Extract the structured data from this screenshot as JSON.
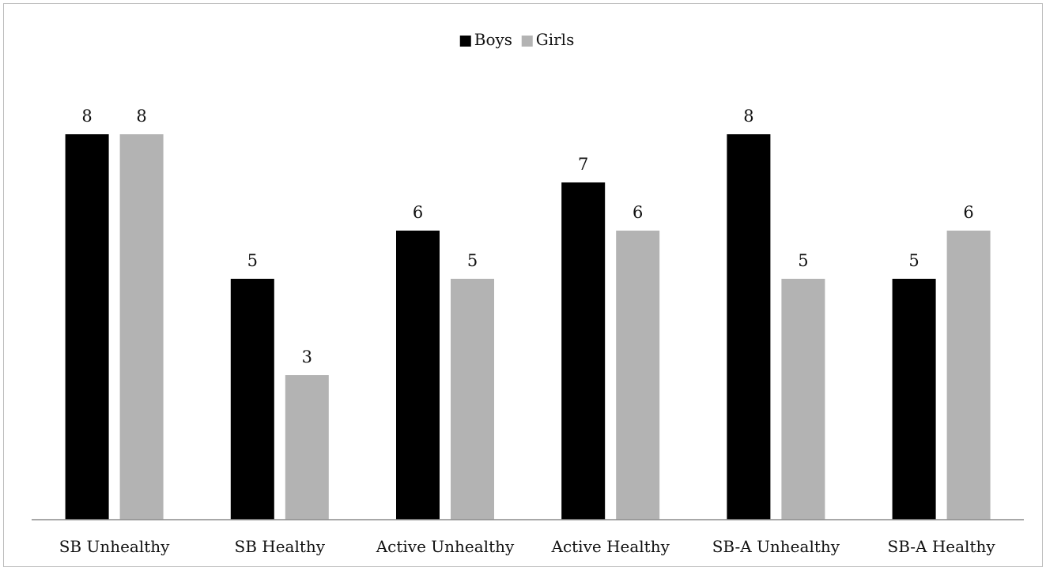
{
  "chart_data": {
    "type": "bar",
    "categories": [
      "SB Unhealthy",
      "SB Healthy",
      "Active Unhealthy",
      "Active Healthy",
      "SB-A Unhealthy",
      "SB-A Healthy"
    ],
    "series": [
      {
        "name": "Boys",
        "values": [
          8,
          5,
          6,
          7,
          8,
          5
        ],
        "color": "#000000"
      },
      {
        "name": "Girls",
        "values": [
          8,
          3,
          5,
          6,
          5,
          6
        ],
        "color": "#b3b3b3"
      }
    ],
    "ylim": [
      0,
      10.2
    ],
    "grid": false,
    "legend_position": "top-center",
    "show_data_labels": true,
    "show_y_axis": false
  }
}
